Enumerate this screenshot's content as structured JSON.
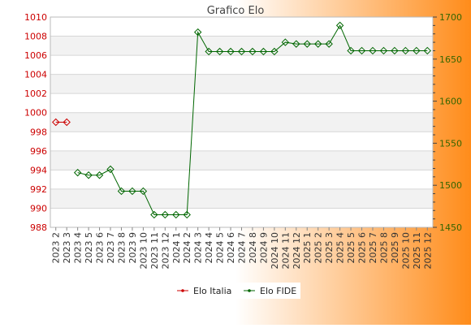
{
  "chart_data": {
    "type": "line",
    "title": "Grafico Elo",
    "x": [
      "2023 2",
      "2023 3",
      "2023 4",
      "2023 5",
      "2023 6",
      "2023 7",
      "2023 8",
      "2023 9",
      "2023 10",
      "2023 11",
      "2023 12",
      "2024 1",
      "2024 2",
      "2024 3",
      "2024 4",
      "2024 5",
      "2024 6",
      "2024 7",
      "2024 8",
      "2024 9",
      "2024 10",
      "2024 11",
      "2024 12",
      "2025 1",
      "2025 2",
      "2025 3",
      "2025 4",
      "2025 5",
      "2025 6",
      "2025 7",
      "2025 8",
      "2025 9",
      "2025 10",
      "2025 11",
      "2025 12"
    ],
    "left_axis": {
      "ylim": [
        988,
        1010
      ],
      "ticks": [
        988,
        990,
        992,
        994,
        996,
        998,
        1000,
        1002,
        1004,
        1006,
        1008,
        1010
      ],
      "color": "#cc0000"
    },
    "right_axis": {
      "ylim": [
        1450,
        1700
      ],
      "ticks": [
        1450,
        1500,
        1550,
        1600,
        1650,
        1700
      ],
      "color": "#336600"
    },
    "series": [
      {
        "name": "Elo Italia",
        "axis": "left",
        "color": "#cc0000",
        "values": [
          999,
          999,
          null,
          null,
          null,
          null,
          null,
          null,
          null,
          null,
          null,
          null,
          null,
          null,
          null,
          null,
          null,
          null,
          null,
          null,
          null,
          null,
          null,
          null,
          null,
          null,
          null,
          null,
          null,
          null,
          null,
          null,
          null,
          null,
          null
        ]
      },
      {
        "name": "Elo FIDE",
        "axis": "right",
        "color": "#006600",
        "values": [
          null,
          null,
          1515,
          1512,
          1512,
          1519,
          1493,
          1493,
          1493,
          1465,
          1465,
          1465,
          1465,
          1682,
          1659,
          1659,
          1659,
          1659,
          1659,
          1659,
          1659,
          1670,
          1668,
          1668,
          1668,
          1668,
          1690,
          1660,
          1660,
          1660,
          1660,
          1660,
          1660,
          1660,
          1660
        ]
      }
    ],
    "grid": true,
    "legend_position": "bottom"
  }
}
